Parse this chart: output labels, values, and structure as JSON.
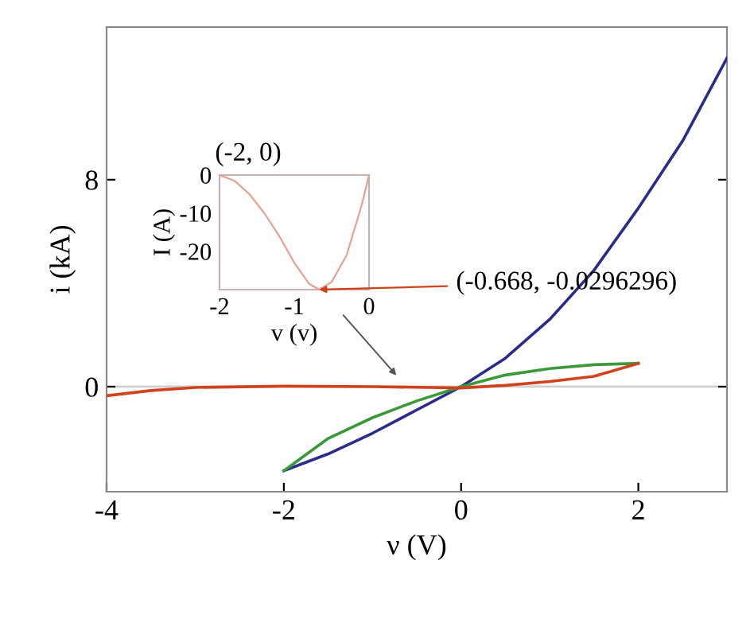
{
  "chart_data": [
    {
      "type": "line",
      "xlabel": "ν (V)",
      "ylabel": "i (kA)",
      "xlim": [
        -4,
        3
      ],
      "ylim": [
        -4.06,
        13.9
      ],
      "xticks": [
        -4,
        -2,
        0,
        2
      ],
      "yticks": [
        0,
        8
      ],
      "grid": false,
      "legend": false,
      "marker": "none",
      "line_style": "solid",
      "ref_lines": [
        {
          "axis": "y",
          "value": 0,
          "color": "#d0d0d0"
        }
      ],
      "series": [
        {
          "color": "#2b2b8c",
          "x": [
            -2,
            -1.5,
            -1,
            -0.5,
            0,
            0.5,
            1,
            1.5,
            2,
            2.5,
            3
          ],
          "values": [
            -3.25,
            -2.6,
            -1.8,
            -0.9,
            0,
            1.1,
            2.6,
            4.5,
            6.9,
            9.5,
            12.7
          ]
        },
        {
          "color": "#3a9a3a",
          "x": [
            -2,
            -1.5,
            -1,
            -0.5,
            0,
            0.5,
            1,
            1.5,
            2
          ],
          "values": [
            -3.25,
            -2.0,
            -1.2,
            -0.55,
            0,
            0.45,
            0.7,
            0.85,
            0.9
          ]
        },
        {
          "color": "#d0421b",
          "x": [
            -4,
            -3.5,
            -3,
            -2,
            -1,
            0,
            0.5,
            1,
            1.5,
            2
          ],
          "values": [
            -0.35,
            -0.15,
            -0.03,
            0.02,
            0,
            -0.05,
            0.05,
            0.2,
            0.4,
            0.9
          ]
        }
      ]
    },
    {
      "type": "line",
      "xlabel": "v (v)",
      "ylabel": "I (A)",
      "xlim": [
        -2,
        0
      ],
      "ylim": [
        -30,
        0
      ],
      "xticks": [
        -2,
        -1,
        0
      ],
      "yticks": [
        0,
        -10,
        -20
      ],
      "grid": false,
      "legend": false,
      "marker": "none",
      "line_style": "solid",
      "annotations": [
        {
          "text": "(-2, 0)",
          "x": -2,
          "y": 0
        },
        {
          "text": "(-0.668, -0.0296296)",
          "x": -0.668,
          "y": -30
        }
      ],
      "series": [
        {
          "color": "#e8a090",
          "x": [
            -2,
            -1.8,
            -1.6,
            -1.4,
            -1.2,
            -1,
            -0.8,
            -0.668,
            -0.5,
            -0.3,
            -0.1,
            0
          ],
          "values": [
            0,
            -1.5,
            -5,
            -10,
            -16,
            -23,
            -28.5,
            -30,
            -28,
            -21,
            -8,
            0
          ]
        }
      ]
    }
  ]
}
